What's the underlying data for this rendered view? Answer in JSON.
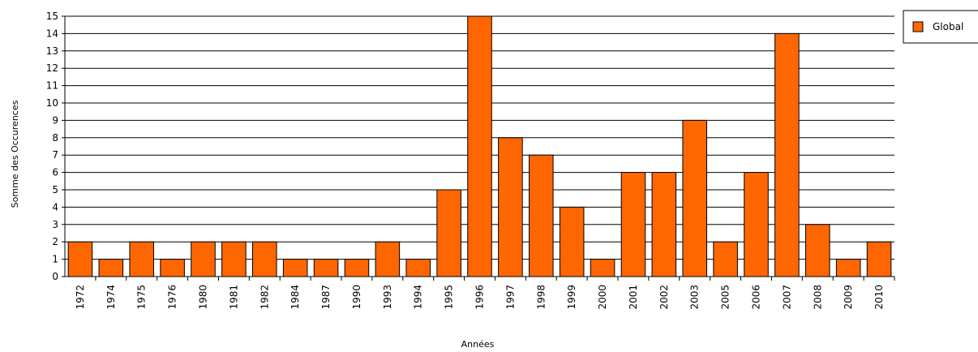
{
  "chart_data": {
    "type": "bar",
    "title": "",
    "xlabel": "Années",
    "ylabel": "Somme des Occurences",
    "ylim": [
      0,
      15
    ],
    "yticks": [
      0,
      1,
      2,
      3,
      4,
      5,
      6,
      7,
      8,
      9,
      10,
      11,
      12,
      13,
      14,
      15
    ],
    "categories": [
      "1972",
      "1974",
      "1975",
      "1976",
      "1980",
      "1981",
      "1982",
      "1984",
      "1987",
      "1990",
      "1993",
      "1994",
      "1995",
      "1996",
      "1997",
      "1998",
      "1999",
      "2000",
      "2001",
      "2002",
      "2003",
      "2005",
      "2006",
      "2007",
      "2008",
      "2009",
      "2010"
    ],
    "series": [
      {
        "name": "Global",
        "color": "#ff6600",
        "values": [
          2,
          1,
          2,
          1,
          2,
          2,
          2,
          1,
          1,
          1,
          2,
          1,
          5,
          15,
          8,
          7,
          4,
          1,
          6,
          6,
          9,
          2,
          6,
          14,
          3,
          1,
          2
        ]
      }
    ],
    "grid": true,
    "legend_position": "top-right"
  }
}
